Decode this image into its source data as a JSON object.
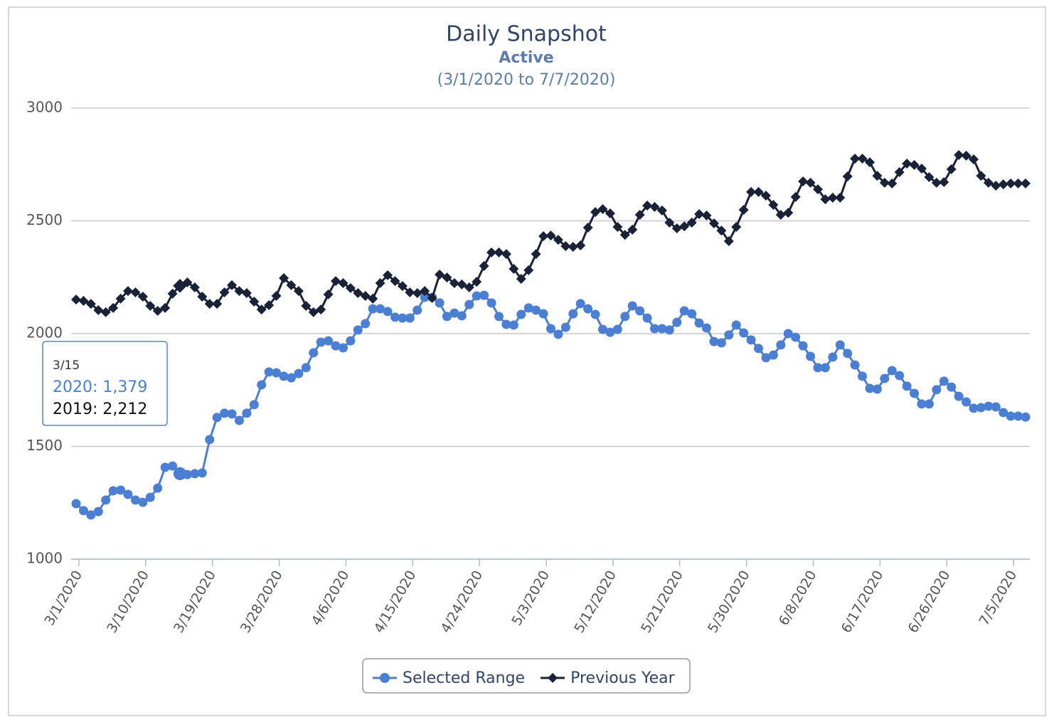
{
  "chart_data": {
    "type": "line",
    "title": "Daily Snapshot",
    "subtitle": "Active",
    "date_range": "(3/1/2020 to 7/7/2020)",
    "categories": [
      "3/1/2020",
      null,
      null,
      null,
      null,
      null,
      null,
      null,
      null,
      "3/10/2020",
      null,
      null,
      null,
      null,
      null,
      null,
      null,
      null,
      "3/19/2020",
      null,
      null,
      null,
      null,
      null,
      null,
      null,
      null,
      "3/28/2020",
      null,
      null,
      null,
      null,
      null,
      null,
      null,
      null,
      "4/6/2020",
      null,
      null,
      null,
      null,
      null,
      null,
      null,
      null,
      "4/15/2020",
      null,
      null,
      null,
      null,
      null,
      null,
      null,
      null,
      "4/24/2020",
      null,
      null,
      null,
      null,
      null,
      null,
      null,
      null,
      "5/3/2020",
      null,
      null,
      null,
      null,
      null,
      null,
      null,
      null,
      "5/12/2020",
      null,
      null,
      null,
      null,
      null,
      null,
      null,
      null,
      "5/21/2020",
      null,
      null,
      null,
      null,
      null,
      null,
      null,
      null,
      "5/30/2020",
      null,
      null,
      null,
      null,
      null,
      null,
      null,
      null,
      "6/8/2020",
      null,
      null,
      null,
      null,
      null,
      null,
      null,
      null,
      "6/17/2020",
      null,
      null,
      null,
      null,
      null,
      null,
      null,
      null,
      "6/26/2020",
      null,
      null,
      null,
      null,
      null,
      null,
      null,
      null,
      "7/5/2020",
      null,
      null
    ],
    "series": [
      {
        "name": "Selected Range",
        "color": "#4a7fd4",
        "marker": "circle",
        "values": [
          1246,
          1215,
          1196,
          1211,
          1262,
          1303,
          1306,
          1287,
          1262,
          1252,
          1274,
          1315,
          1407,
          1413,
          1379,
          1375,
          1379,
          1382,
          1530,
          1628,
          1647,
          1644,
          1615,
          1647,
          1685,
          1773,
          1830,
          1826,
          1811,
          1804,
          1823,
          1849,
          1915,
          1962,
          1968,
          1946,
          1937,
          1968,
          2016,
          2044,
          2110,
          2110,
          2098,
          2073,
          2069,
          2069,
          2104,
          2161,
          2161,
          2136,
          2076,
          2091,
          2079,
          2129,
          2167,
          2170,
          2136,
          2076,
          2041,
          2038,
          2085,
          2114,
          2104,
          2088,
          2022,
          1997,
          2028,
          2088,
          2133,
          2110,
          2085,
          2019,
          2006,
          2019,
          2076,
          2123,
          2101,
          2069,
          2022,
          2022,
          2016,
          2050,
          2101,
          2088,
          2047,
          2025,
          1965,
          1959,
          1994,
          2038,
          2003,
          1972,
          1934,
          1893,
          1905,
          1950,
          2000,
          1984,
          1946,
          1899,
          1849,
          1849,
          1896,
          1950,
          1912,
          1861,
          1811,
          1757,
          1754,
          1801,
          1836,
          1814,
          1767,
          1735,
          1688,
          1688,
          1751,
          1789,
          1763,
          1722,
          1697,
          1669,
          1672,
          1678,
          1675,
          1650,
          1634,
          1634,
          1630
        ]
      },
      {
        "name": "Previous Year",
        "color": "#1a2238",
        "marker": "diamond",
        "values": [
          2151,
          2145,
          2132,
          2104,
          2095,
          2114,
          2155,
          2189,
          2183,
          2164,
          2123,
          2101,
          2114,
          2177,
          2212,
          2227,
          2205,
          2164,
          2132,
          2132,
          2183,
          2215,
          2189,
          2180,
          2142,
          2107,
          2126,
          2167,
          2246,
          2215,
          2189,
          2123,
          2095,
          2107,
          2174,
          2233,
          2224,
          2202,
          2180,
          2167,
          2155,
          2224,
          2259,
          2233,
          2211,
          2183,
          2180,
          2189,
          2158,
          2262,
          2249,
          2224,
          2218,
          2205,
          2230,
          2300,
          2360,
          2360,
          2353,
          2287,
          2243,
          2281,
          2353,
          2432,
          2435,
          2416,
          2388,
          2385,
          2391,
          2470,
          2539,
          2552,
          2533,
          2473,
          2438,
          2461,
          2527,
          2568,
          2562,
          2546,
          2492,
          2467,
          2476,
          2492,
          2530,
          2524,
          2489,
          2457,
          2410,
          2473,
          2549,
          2628,
          2628,
          2612,
          2571,
          2527,
          2536,
          2606,
          2675,
          2669,
          2640,
          2596,
          2603,
          2603,
          2697,
          2776,
          2776,
          2760,
          2700,
          2669,
          2666,
          2716,
          2754,
          2748,
          2732,
          2694,
          2669,
          2672,
          2729,
          2792,
          2789,
          2773,
          2700,
          2669,
          2656,
          2662,
          2666,
          2666,
          2666
        ]
      }
    ],
    "ylim": [
      1000,
      3000
    ],
    "yticks": [
      1000,
      1500,
      2000,
      2500,
      3000
    ],
    "grid": true,
    "legend": "bottom",
    "tooltip": {
      "index": 14,
      "title": "3/15",
      "lines": [
        "2020: 1,379",
        "2019: 2,212"
      ]
    }
  }
}
